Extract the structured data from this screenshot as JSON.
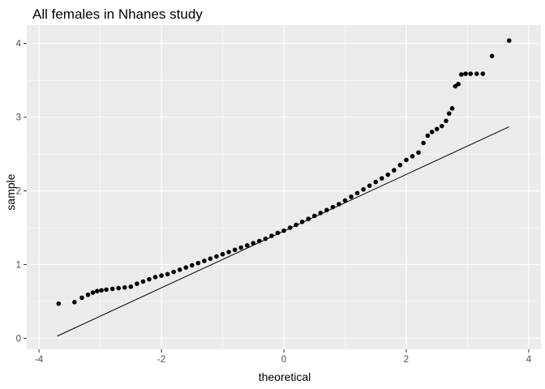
{
  "chart_data": {
    "type": "scatter",
    "title": "All females in Nhanes study",
    "xlabel": "theoretical",
    "ylabel": "sample",
    "xlim": [
      -4.2,
      4.2
    ],
    "ylim": [
      -0.15,
      4.25
    ],
    "x_ticks": [
      -4,
      -2,
      0,
      2,
      4
    ],
    "y_ticks": [
      0,
      1,
      2,
      3,
      4
    ],
    "x_tick_labels": [
      "-4",
      "-2",
      "0",
      "2",
      "4"
    ],
    "y_tick_labels": [
      "0",
      "1",
      "2",
      "3",
      "4"
    ],
    "grid": true,
    "legend": "none",
    "colors": {
      "panel": "#ebebeb",
      "grid": "#ffffff",
      "points": "#000000",
      "line": "#000000"
    },
    "reference_line": {
      "x": [
        -3.7,
        3.68
      ],
      "y": [
        0.03,
        2.87
      ]
    },
    "points": {
      "x": [
        -3.68,
        -3.42,
        -3.3,
        -3.2,
        -3.12,
        -3.05,
        -2.98,
        -2.9,
        -2.8,
        -2.7,
        -2.6,
        -2.5,
        -2.4,
        -2.3,
        -2.2,
        -2.1,
        -2.0,
        -1.9,
        -1.8,
        -1.7,
        -1.6,
        -1.5,
        -1.4,
        -1.3,
        -1.2,
        -1.1,
        -1.0,
        -0.9,
        -0.8,
        -0.7,
        -0.6,
        -0.5,
        -0.4,
        -0.3,
        -0.2,
        -0.1,
        0.0,
        0.1,
        0.2,
        0.3,
        0.4,
        0.5,
        0.6,
        0.7,
        0.8,
        0.9,
        1.0,
        1.1,
        1.2,
        1.3,
        1.4,
        1.5,
        1.6,
        1.7,
        1.8,
        1.9,
        2.0,
        2.1,
        2.2,
        2.28,
        2.35,
        2.42,
        2.5,
        2.58,
        2.65,
        2.7,
        2.75,
        2.8,
        2.85,
        2.9,
        2.97,
        3.05,
        3.15,
        3.25,
        3.4,
        3.68
      ],
      "y": [
        0.47,
        0.49,
        0.55,
        0.59,
        0.62,
        0.64,
        0.65,
        0.66,
        0.67,
        0.68,
        0.69,
        0.7,
        0.74,
        0.77,
        0.8,
        0.83,
        0.85,
        0.87,
        0.9,
        0.93,
        0.96,
        0.99,
        1.02,
        1.05,
        1.08,
        1.11,
        1.14,
        1.17,
        1.2,
        1.23,
        1.26,
        1.29,
        1.32,
        1.35,
        1.39,
        1.43,
        1.46,
        1.5,
        1.54,
        1.58,
        1.62,
        1.66,
        1.7,
        1.74,
        1.78,
        1.82,
        1.87,
        1.92,
        1.97,
        2.02,
        2.07,
        2.12,
        2.17,
        2.22,
        2.28,
        2.35,
        2.42,
        2.47,
        2.52,
        2.65,
        2.75,
        2.8,
        2.84,
        2.88,
        2.95,
        3.05,
        3.12,
        3.42,
        3.45,
        3.58,
        3.59,
        3.59,
        3.59,
        3.59,
        3.83,
        4.04
      ]
    }
  }
}
